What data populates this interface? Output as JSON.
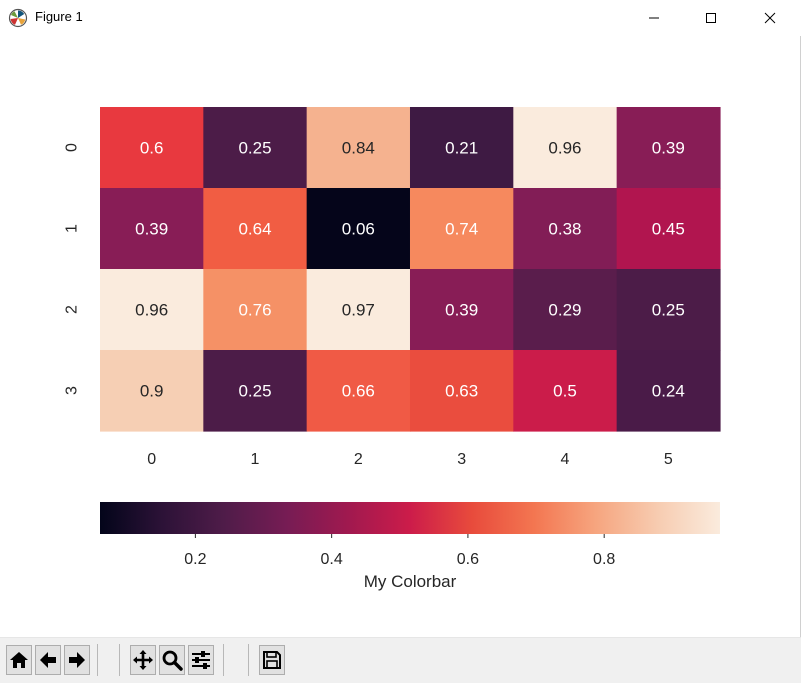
{
  "window": {
    "title": "Figure 1",
    "controls": {
      "minimize": "—",
      "maximize": "☐",
      "close": "✕"
    }
  },
  "toolbar": {
    "buttons": [
      {
        "name": "home-button",
        "icon": "home-icon"
      },
      {
        "name": "back-button",
        "icon": "arrow-left-icon"
      },
      {
        "name": "forward-button",
        "icon": "arrow-right-icon"
      },
      {
        "name": "pan-button",
        "icon": "move-icon"
      },
      {
        "name": "zoom-button",
        "icon": "zoom-icon"
      },
      {
        "name": "configure-subplots-button",
        "icon": "sliders-icon"
      },
      {
        "name": "save-button",
        "icon": "save-icon"
      }
    ]
  },
  "chart_data": {
    "type": "heatmap",
    "title": "",
    "xlabel": "",
    "ylabel": "",
    "x_categories": [
      "0",
      "1",
      "2",
      "3",
      "4",
      "5"
    ],
    "y_categories": [
      "0",
      "1",
      "2",
      "3"
    ],
    "values": [
      [
        0.6,
        0.25,
        0.84,
        0.21,
        0.96,
        0.39
      ],
      [
        0.39,
        0.64,
        0.06,
        0.74,
        0.38,
        0.45
      ],
      [
        0.96,
        0.76,
        0.97,
        0.39,
        0.29,
        0.25
      ],
      [
        0.9,
        0.25,
        0.66,
        0.63,
        0.5,
        0.24
      ]
    ],
    "annotations": [
      [
        "0.6",
        "0.25",
        "0.84",
        "0.21",
        "0.96",
        "0.39"
      ],
      [
        "0.39",
        "0.64",
        "0.06",
        "0.74",
        "0.38",
        "0.45"
      ],
      [
        "0.96",
        "0.76",
        "0.97",
        "0.39",
        "0.29",
        "0.25"
      ],
      [
        "0.9",
        "0.25",
        "0.66",
        "0.63",
        "0.5",
        "0.24"
      ]
    ],
    "colormap": "rocket",
    "colorbar": {
      "label": "My Colorbar",
      "orientation": "horizontal",
      "range": [
        0.06,
        0.97
      ],
      "ticks": [
        0.2,
        0.4,
        0.6,
        0.8
      ],
      "tick_labels": [
        "0.2",
        "0.4",
        "0.6",
        "0.8"
      ]
    },
    "cell_colors": [
      [
        "#e8393f",
        "#4c1c48",
        "#f5b28f",
        "#3e1a43",
        "#faebdd",
        "#881d56"
      ],
      [
        "#881d56",
        "#f15d43",
        "#05051a",
        "#f6895e",
        "#821d56",
        "#b1154f"
      ],
      [
        "#faebdd",
        "#f59166",
        "#faebdd",
        "#881d56",
        "#5a1d4c",
        "#4c1c48"
      ],
      [
        "#f6cfb4",
        "#4c1c48",
        "#f05a45",
        "#ea4d3e",
        "#cb1c4a",
        "#4a1b48"
      ]
    ],
    "text_colors": [
      [
        "#ffffff",
        "#ffffff",
        "#262626",
        "#ffffff",
        "#262626",
        "#ffffff"
      ],
      [
        "#ffffff",
        "#ffffff",
        "#ffffff",
        "#ffffff",
        "#ffffff",
        "#ffffff"
      ],
      [
        "#262626",
        "#ffffff",
        "#262626",
        "#ffffff",
        "#ffffff",
        "#ffffff"
      ],
      [
        "#262626",
        "#ffffff",
        "#ffffff",
        "#ffffff",
        "#ffffff",
        "#ffffff"
      ]
    ],
    "colormap_stops": [
      "#03051a",
      "#2c1237",
      "#4f1c49",
      "#761c54",
      "#a0194f",
      "#cc1c4a",
      "#e84b3c",
      "#f37651",
      "#f6a57f",
      "#f7ccb1",
      "#faebdd"
    ]
  }
}
